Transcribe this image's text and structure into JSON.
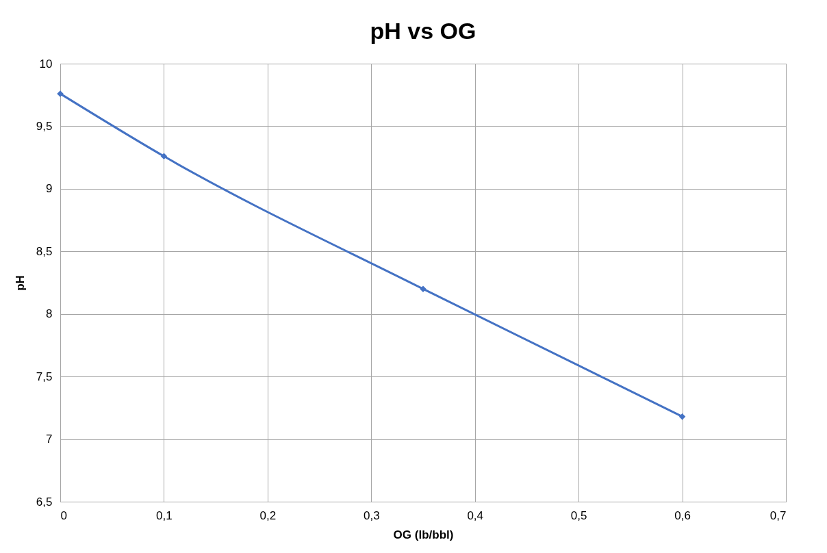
{
  "chart_data": {
    "type": "line",
    "title": "pH vs OG",
    "xlabel": "OG (lb/bbl)",
    "ylabel": "pH",
    "x": [
      0,
      0.1,
      0.35,
      0.6
    ],
    "series": [
      {
        "color": "#4472c4",
        "values": [
          9.76,
          9.26,
          8.2,
          7.18
        ]
      }
    ],
    "xlim": [
      0,
      0.7
    ],
    "ylim": [
      6.5,
      10
    ],
    "xticks": [
      0,
      {
        "value": 0.1,
        "label": "0,1"
      },
      {
        "value": 0.2,
        "label": "0,2"
      },
      {
        "value": 0.3,
        "label": "0,3"
      },
      {
        "value": 0.4,
        "label": "0,4"
      },
      {
        "value": 0.5,
        "label": "0,5"
      },
      {
        "value": 0.6,
        "label": "0,6"
      },
      {
        "value": 0.7,
        "label": "0,7"
      }
    ],
    "yticks": [
      {
        "value": 6.5,
        "label": "6,5"
      },
      7,
      {
        "value": 7.5,
        "label": "7,5"
      },
      8,
      {
        "value": 8.5,
        "label": "8,5"
      },
      9,
      {
        "value": 9.5,
        "label": "9,5"
      },
      10
    ],
    "grid": true,
    "marker": "diamond",
    "line_style": "solid"
  }
}
